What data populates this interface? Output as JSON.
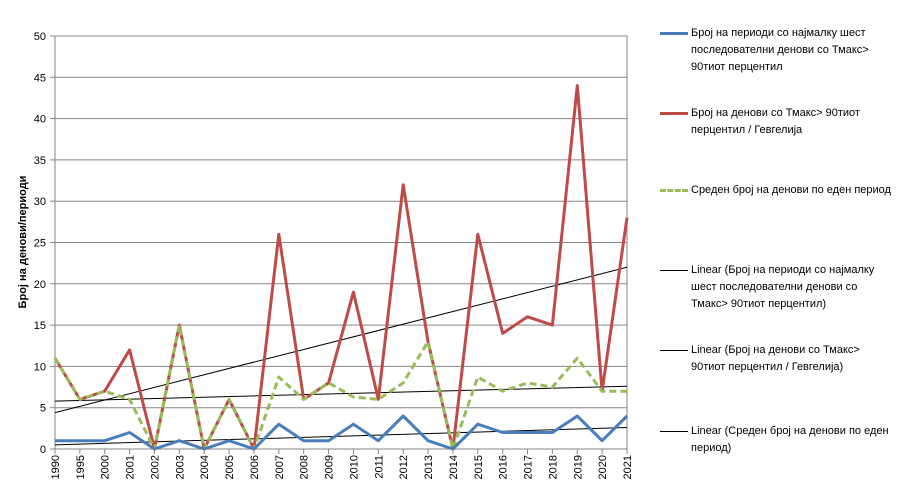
{
  "chart_data": {
    "type": "line",
    "title": "",
    "xlabel": "",
    "ylabel": "Број на денови/периоди",
    "ylim": [
      0,
      50
    ],
    "yticks": [
      0,
      5,
      10,
      15,
      20,
      25,
      30,
      35,
      40,
      45,
      50
    ],
    "grid": true,
    "legend_position": "right",
    "categories": [
      "1990",
      "1995",
      "2000",
      "2001",
      "2002",
      "2003",
      "2004",
      "2005",
      "2006",
      "2007",
      "2008",
      "2009",
      "2010",
      "2011",
      "2012",
      "2013",
      "2014",
      "2015",
      "2016",
      "2017",
      "2018",
      "2019",
      "2020",
      "2021"
    ],
    "series": [
      {
        "name": "Број на периоди со најмалку шест последователни денови со Тмакс> 90тиот перцентил",
        "color": "#4a7ebb",
        "style": "solid",
        "values": [
          1,
          1,
          1,
          2,
          0,
          1,
          0,
          1,
          0,
          3,
          1,
          1,
          3,
          1,
          4,
          1,
          0,
          3,
          2,
          2,
          2,
          4,
          1,
          4
        ]
      },
      {
        "name": "Број на денови со Тмакс> 90тиот перцентил / Гевгелија",
        "color": "#be4b48",
        "style": "solid",
        "values": [
          11,
          6,
          7,
          12,
          0,
          15,
          0,
          6,
          0,
          26,
          6,
          8,
          19,
          6,
          32,
          13,
          0,
          26,
          14,
          16,
          15,
          44,
          7,
          28
        ]
      },
      {
        "name": "Среден број на денови по еден период",
        "color": "#9bbb59",
        "style": "dashed",
        "values": [
          11,
          6,
          7,
          6,
          0,
          15,
          0,
          6,
          0,
          8.7,
          6,
          8,
          6.3,
          6,
          8,
          13,
          0,
          8.7,
          7,
          8,
          7.5,
          11,
          7,
          7
        ]
      }
    ],
    "trendlines": [
      {
        "name": "Linear (Број на периоди со најмалку шест последователни денови со Тмакс> 90тиот перцентил)",
        "color": "#000000",
        "from": 0.5,
        "to": 2.6
      },
      {
        "name": "Linear (Број на денови со Тмакс> 90тиот перцентил / Гевгелија)",
        "color": "#000000",
        "from": 4.4,
        "to": 22
      },
      {
        "name": "Linear (Среден број на денови по еден период)",
        "color": "#000000",
        "from": 5.8,
        "to": 7.6
      }
    ]
  }
}
